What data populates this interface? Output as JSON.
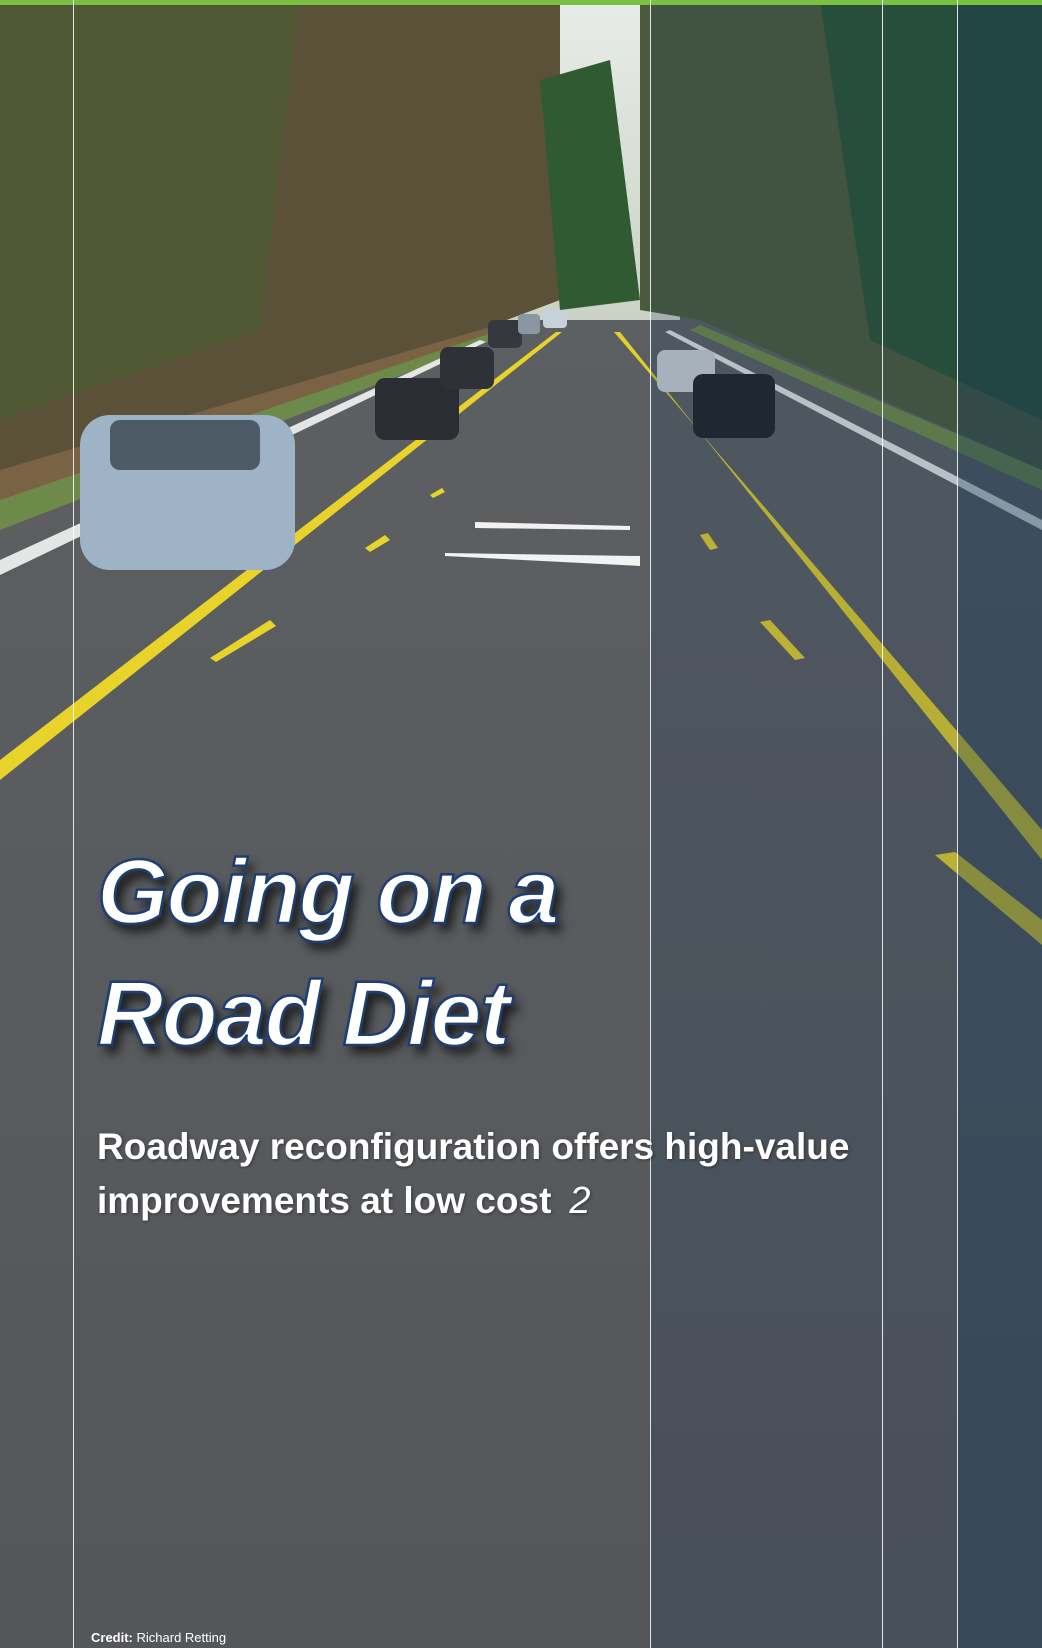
{
  "cover": {
    "title_lines": [
      "Going on a",
      "Road Diet"
    ],
    "subtitle_lines": [
      "Roadway reconfiguration offers high-value",
      "improvements at low cost"
    ],
    "page_number": 2,
    "credit_label": "Credit:",
    "credit_name": "Richard Retting"
  }
}
